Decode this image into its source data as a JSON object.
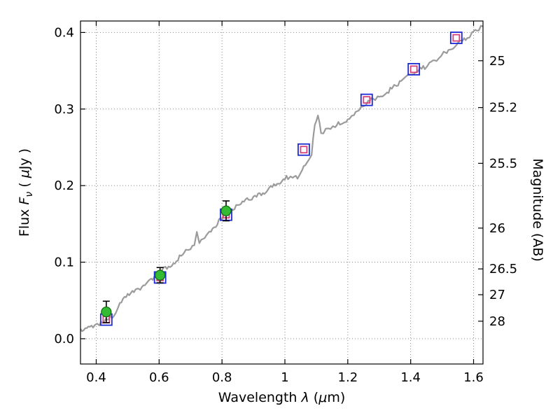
{
  "figure": {
    "background": "#ffffff",
    "frame_color": "#000000",
    "grid_color": "#888888"
  },
  "chart_data": {
    "type": "line",
    "title": "",
    "xlabel_full": "Wavelength λ (μm)",
    "ylabel_left_full": "Flux Fν ( μJy )",
    "ylabel_right_full": "Magnitude (AB)",
    "labels": {
      "xlabel_word": "Wavelength ",
      "xlabel_lambda": "λ",
      "xlabel_open": " (",
      "xlabel_mu": "μ",
      "xlabel_close": "m)",
      "flux_word": "Flux ",
      "flux_symbol": "F",
      "flux_sub": "ν",
      "flux_unit_open": " ( ",
      "flux_mu": "μ",
      "flux_unit_close": "Jy )",
      "mag_label": "Magnitude (AB)"
    },
    "xlim": [
      0.35,
      1.63
    ],
    "ylim": [
      -0.033,
      0.415
    ],
    "grid": true,
    "legend": "none",
    "x_ticks": [
      {
        "value": 0.4,
        "label": "0.4"
      },
      {
        "value": 0.6,
        "label": "0.6"
      },
      {
        "value": 0.8,
        "label": "0.8"
      },
      {
        "value": 1.0,
        "label": "1"
      },
      {
        "value": 1.2,
        "label": "1.2"
      },
      {
        "value": 1.4,
        "label": "1.4"
      },
      {
        "value": 1.6,
        "label": "1.6"
      }
    ],
    "y_ticks_left": [
      {
        "value": 0.0,
        "label": "0.0"
      },
      {
        "value": 0.1,
        "label": "0.1"
      },
      {
        "value": 0.2,
        "label": "0.2"
      },
      {
        "value": 0.3,
        "label": "0.3"
      },
      {
        "value": 0.4,
        "label": "0.4"
      }
    ],
    "y_ticks_right": [
      {
        "flux": 0.3631,
        "label": "25"
      },
      {
        "flux": 0.302,
        "label": "25.2"
      },
      {
        "flux": 0.2291,
        "label": "25.5"
      },
      {
        "flux": 0.1445,
        "label": "26"
      },
      {
        "flux": 0.0912,
        "label": "26.5"
      },
      {
        "flux": 0.0575,
        "label": "27"
      },
      {
        "flux": 0.0229,
        "label": "28"
      }
    ],
    "series": [
      {
        "name": "model-spectrum",
        "type": "line",
        "color": "#9b9b9b",
        "line_width": 2.2,
        "noise_amplitude": 0.003,
        "anchors": [
          [
            0.35,
            0.01
          ],
          [
            0.365,
            0.016
          ],
          [
            0.38,
            0.013
          ],
          [
            0.395,
            0.018
          ],
          [
            0.41,
            0.02
          ],
          [
            0.425,
            0.024
          ],
          [
            0.44,
            0.026
          ],
          [
            0.455,
            0.031
          ],
          [
            0.47,
            0.04
          ],
          [
            0.485,
            0.052
          ],
          [
            0.5,
            0.058
          ],
          [
            0.515,
            0.06
          ],
          [
            0.53,
            0.064
          ],
          [
            0.545,
            0.068
          ],
          [
            0.56,
            0.073
          ],
          [
            0.575,
            0.077
          ],
          [
            0.59,
            0.08
          ],
          [
            0.605,
            0.085
          ],
          [
            0.615,
            0.094
          ],
          [
            0.625,
            0.09
          ],
          [
            0.64,
            0.096
          ],
          [
            0.655,
            0.103
          ],
          [
            0.67,
            0.109
          ],
          [
            0.685,
            0.114
          ],
          [
            0.7,
            0.119
          ],
          [
            0.712,
            0.124
          ],
          [
            0.72,
            0.138
          ],
          [
            0.728,
            0.126
          ],
          [
            0.74,
            0.131
          ],
          [
            0.755,
            0.137
          ],
          [
            0.77,
            0.144
          ],
          [
            0.785,
            0.151
          ],
          [
            0.8,
            0.157
          ],
          [
            0.815,
            0.163
          ],
          [
            0.83,
            0.168
          ],
          [
            0.845,
            0.172
          ],
          [
            0.86,
            0.176
          ],
          [
            0.875,
            0.18
          ],
          [
            0.89,
            0.183
          ],
          [
            0.905,
            0.186
          ],
          [
            0.92,
            0.189
          ],
          [
            0.935,
            0.192
          ],
          [
            0.95,
            0.196
          ],
          [
            0.965,
            0.2
          ],
          [
            0.98,
            0.204
          ],
          [
            0.995,
            0.208
          ],
          [
            1.01,
            0.211
          ],
          [
            1.025,
            0.213
          ],
          [
            1.04,
            0.211
          ],
          [
            1.055,
            0.22
          ],
          [
            1.07,
            0.232
          ],
          [
            1.085,
            0.243
          ],
          [
            1.095,
            0.278
          ],
          [
            1.105,
            0.292
          ],
          [
            1.115,
            0.268
          ],
          [
            1.13,
            0.272
          ],
          [
            1.145,
            0.276
          ],
          [
            1.16,
            0.279
          ],
          [
            1.175,
            0.281
          ],
          [
            1.19,
            0.284
          ],
          [
            1.205,
            0.289
          ],
          [
            1.22,
            0.294
          ],
          [
            1.235,
            0.3
          ],
          [
            1.25,
            0.306
          ],
          [
            1.265,
            0.31
          ],
          [
            1.28,
            0.313
          ],
          [
            1.295,
            0.316
          ],
          [
            1.31,
            0.318
          ],
          [
            1.325,
            0.322
          ],
          [
            1.34,
            0.327
          ],
          [
            1.355,
            0.332
          ],
          [
            1.37,
            0.336
          ],
          [
            1.385,
            0.341
          ],
          [
            1.4,
            0.345
          ],
          [
            1.415,
            0.349
          ],
          [
            1.43,
            0.352
          ],
          [
            1.445,
            0.355
          ],
          [
            1.46,
            0.358
          ],
          [
            1.475,
            0.363
          ],
          [
            1.49,
            0.368
          ],
          [
            1.505,
            0.373
          ],
          [
            1.52,
            0.377
          ],
          [
            1.535,
            0.381
          ],
          [
            1.55,
            0.385
          ],
          [
            1.565,
            0.39
          ],
          [
            1.58,
            0.394
          ],
          [
            1.595,
            0.398
          ],
          [
            1.61,
            0.402
          ],
          [
            1.63,
            0.408
          ]
        ]
      },
      {
        "name": "model-photometry-squares",
        "type": "open-square",
        "outer_color": "#1c2bd6",
        "inner_color": "#d6407d",
        "points": [
          [
            0.432,
            0.025
          ],
          [
            0.603,
            0.08
          ],
          [
            0.813,
            0.162
          ],
          [
            1.06,
            0.247
          ],
          [
            1.26,
            0.312
          ],
          [
            1.41,
            0.352
          ],
          [
            1.545,
            0.393
          ]
        ]
      },
      {
        "name": "observed-photometry-circles",
        "type": "circle-errorbar",
        "face_color": "#33bb33",
        "edge_color": "#126e12",
        "errorbar_color": "#000000",
        "points": [
          {
            "x": 0.432,
            "y": 0.035,
            "yerr": 0.014
          },
          {
            "x": 0.603,
            "y": 0.083,
            "yerr": 0.01
          },
          {
            "x": 0.813,
            "y": 0.167,
            "yerr": 0.013
          }
        ]
      }
    ]
  }
}
